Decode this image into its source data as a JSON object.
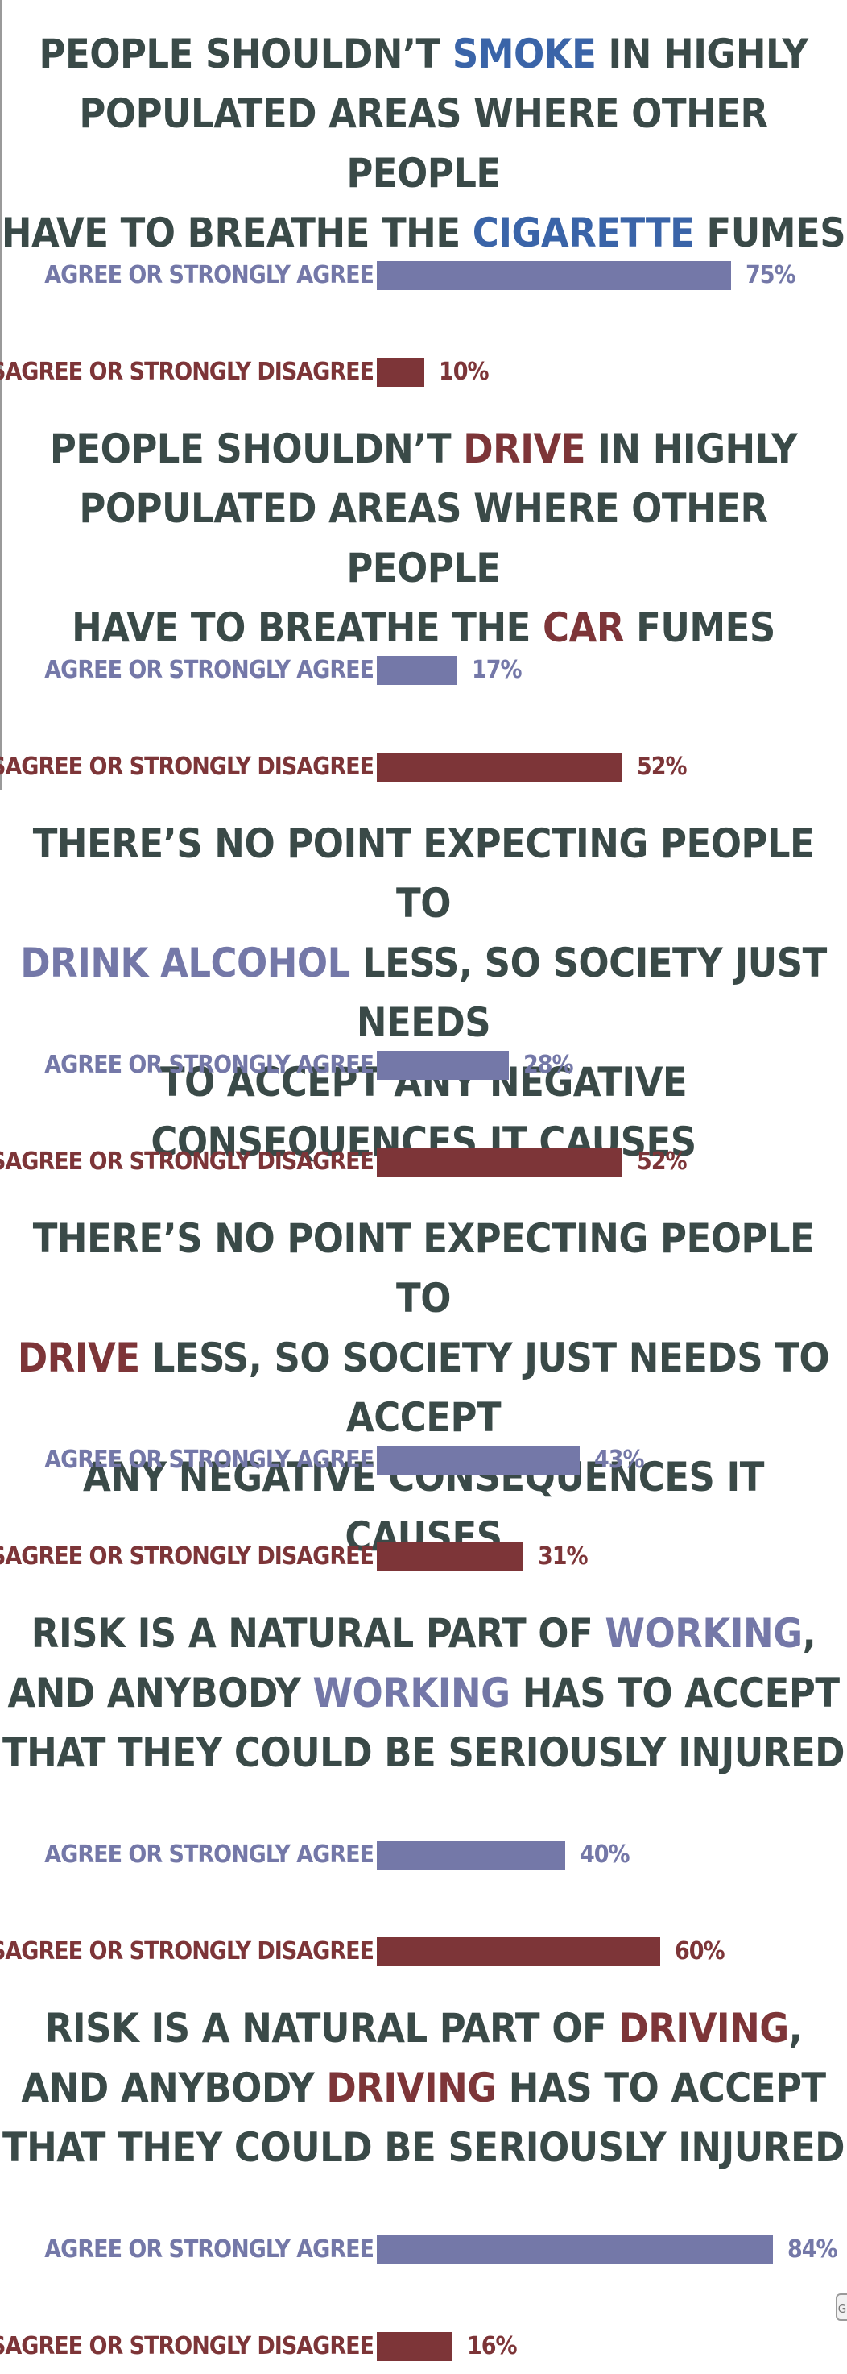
{
  "colors": {
    "title": "#3a4a48",
    "agree": "#7478a8",
    "disagree": "#7d3538",
    "smoke_highlight": "#3a64a8"
  },
  "chart_data": [
    {
      "type": "bar",
      "title_parts": [
        {
          "text": "PEOPLE SHOULDN’T ",
          "hl": false
        },
        {
          "text": "SMOKE",
          "hl": "smoke_highlight"
        },
        {
          "text": " IN HIGHLY\nPOPULATED AREAS WHERE OTHER PEOPLE\nHAVE TO BREATHE THE ",
          "hl": false
        },
        {
          "text": "CIGARETTE",
          "hl": "smoke_highlight"
        },
        {
          "text": " FUMES",
          "hl": false
        }
      ],
      "categories": [
        "AGREE OR STRONGLY AGREE",
        "DISAGREE OR STRONGLY DISAGREE"
      ],
      "values": [
        75,
        10
      ],
      "value_labels": [
        "75%",
        "10%"
      ],
      "ylim": [
        0,
        100
      ]
    },
    {
      "type": "bar",
      "title_parts": [
        {
          "text": "PEOPLE SHOULDN’T ",
          "hl": false
        },
        {
          "text": "DRIVE",
          "hl": "disagree"
        },
        {
          "text": " IN HIGHLY\nPOPULATED AREAS WHERE OTHER PEOPLE\nHAVE TO BREATHE THE ",
          "hl": false
        },
        {
          "text": "CAR",
          "hl": "disagree"
        },
        {
          "text": " FUMES",
          "hl": false
        }
      ],
      "categories": [
        "AGREE OR STRONGLY AGREE",
        "DISAGREE OR STRONGLY DISAGREE"
      ],
      "values": [
        17,
        52
      ],
      "value_labels": [
        "17%",
        "52%"
      ],
      "ylim": [
        0,
        100
      ]
    },
    {
      "type": "bar",
      "title_parts": [
        {
          "text": "THERE’S NO POINT EXPECTING PEOPLE TO\n",
          "hl": false
        },
        {
          "text": "DRINK ALCOHOL",
          "hl": "agree"
        },
        {
          "text": " LESS, SO SOCIETY JUST NEEDS\nTO ACCEPT ANY NEGATIVE CONSEQUENCES IT CAUSES",
          "hl": false
        }
      ],
      "categories": [
        "AGREE OR STRONGLY AGREE",
        "DISAGREE OR STRONGLY DISAGREE"
      ],
      "values": [
        28,
        52
      ],
      "value_labels": [
        "28%",
        "52%"
      ],
      "ylim": [
        0,
        100
      ]
    },
    {
      "type": "bar",
      "title_parts": [
        {
          "text": "THERE’S NO POINT EXPECTING PEOPLE TO\n",
          "hl": false
        },
        {
          "text": "DRIVE",
          "hl": "disagree"
        },
        {
          "text": " LESS, SO SOCIETY JUST NEEDS TO ACCEPT\nANY NEGATIVE CONSEQUENCES IT CAUSES",
          "hl": false
        }
      ],
      "categories": [
        "AGREE OR STRONGLY AGREE",
        "DISAGREE OR STRONGLY DISAGREE"
      ],
      "values": [
        43,
        31
      ],
      "value_labels": [
        "43%",
        "31%"
      ],
      "ylim": [
        0,
        100
      ]
    },
    {
      "type": "bar",
      "title_parts": [
        {
          "text": "RISK IS A NATURAL PART OF ",
          "hl": false
        },
        {
          "text": "WORKING",
          "hl": "agree"
        },
        {
          "text": ",\nAND ANYBODY ",
          "hl": false
        },
        {
          "text": "WORKING",
          "hl": "agree"
        },
        {
          "text": " HAS TO ACCEPT\nTHAT THEY COULD BE SERIOUSLY INJURED",
          "hl": false
        }
      ],
      "categories": [
        "AGREE OR STRONGLY AGREE",
        "DISAGREE OR STRONGLY DISAGREE"
      ],
      "values": [
        40,
        60
      ],
      "value_labels": [
        "40%",
        "60%"
      ],
      "ylim": [
        0,
        100
      ]
    },
    {
      "type": "bar",
      "title_parts": [
        {
          "text": "RISK IS A NATURAL PART OF ",
          "hl": false
        },
        {
          "text": "DRIVING",
          "hl": "disagree"
        },
        {
          "text": ",\nAND ANYBODY ",
          "hl": false
        },
        {
          "text": "DRIVING",
          "hl": "disagree"
        },
        {
          "text": " HAS TO ACCEPT\nTHAT THEY COULD BE SERIOUSLY INJURED",
          "hl": false
        }
      ],
      "categories": [
        "AGREE OR STRONGLY AGREE",
        "DISAGREE OR STRONGLY DISAGREE"
      ],
      "values": [
        84,
        16
      ],
      "value_labels": [
        "84%",
        "16%"
      ],
      "ylim": [
        0,
        100
      ]
    }
  ]
}
